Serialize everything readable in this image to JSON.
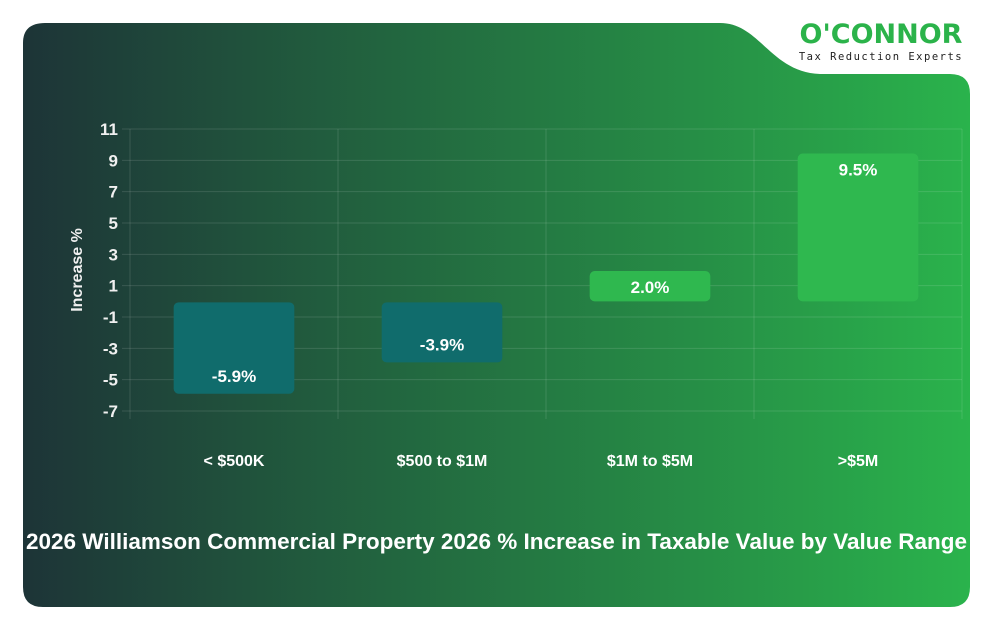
{
  "logo": {
    "name": "O'CONNOR",
    "tagline": "Tax Reduction Experts"
  },
  "colors": {
    "gradient_start": "#1d3437",
    "gradient_end": "#2ab34c",
    "negative_bar": "#106c6c",
    "positive_bar": "#2fb84f",
    "logo_green": "#2bb34a"
  },
  "chart_data": {
    "type": "bar",
    "title": "2026 Williamson Commercial Property 2026 % Increase in Taxable Value by Value Range",
    "xlabel": "",
    "ylabel": "Increase %",
    "categories": [
      "< $500K",
      "$500 to $1M",
      "$1M to $5M",
      ">$5M"
    ],
    "values": [
      -5.9,
      -3.9,
      2.0,
      9.5
    ],
    "data_labels": [
      "-5.9%",
      "-3.9%",
      "2.0%",
      "9.5%"
    ],
    "ylim": [
      -7,
      11
    ],
    "yticks": [
      11,
      9,
      7,
      5,
      3,
      1,
      -1,
      -3,
      -5,
      -7
    ],
    "grid": true,
    "legend": "none"
  }
}
